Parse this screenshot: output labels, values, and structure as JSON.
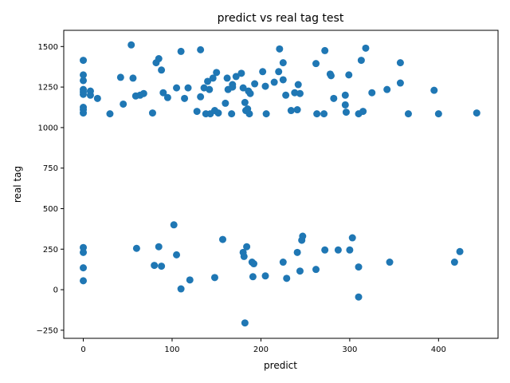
{
  "chart_data": {
    "type": "scatter",
    "title": "predict vs real tag test",
    "xlabel": "predict",
    "ylabel": "real tag",
    "xlim": [
      -22,
      467
    ],
    "ylim": [
      -300,
      1600
    ],
    "xticks": [
      0,
      100,
      200,
      300,
      400
    ],
    "yticks": [
      -250,
      0,
      250,
      500,
      750,
      1000,
      1250,
      1500
    ],
    "grid": false,
    "legend": "none",
    "marker_color": "#1f77b4",
    "series": [
      {
        "points": [
          [
            0,
            1415
          ],
          [
            0,
            1325
          ],
          [
            0,
            1290
          ],
          [
            0,
            1235
          ],
          [
            0,
            1220
          ],
          [
            0,
            1205
          ],
          [
            0,
            1125
          ],
          [
            0,
            1110
          ],
          [
            0,
            1090
          ],
          [
            8,
            1225
          ],
          [
            8,
            1200
          ],
          [
            16,
            1180
          ],
          [
            30,
            1085
          ],
          [
            42,
            1310
          ],
          [
            45,
            1145
          ],
          [
            54,
            1510
          ],
          [
            56,
            1305
          ],
          [
            59,
            1195
          ],
          [
            64,
            1200
          ],
          [
            68,
            1210
          ],
          [
            78,
            1090
          ],
          [
            82,
            1400
          ],
          [
            85,
            1425
          ],
          [
            88,
            1355
          ],
          [
            90,
            1215
          ],
          [
            95,
            1185
          ],
          [
            105,
            1245
          ],
          [
            110,
            1470
          ],
          [
            114,
            1180
          ],
          [
            118,
            1245
          ],
          [
            128,
            1100
          ],
          [
            132,
            1480
          ],
          [
            132,
            1190
          ],
          [
            136,
            1245
          ],
          [
            138,
            1085
          ],
          [
            140,
            1285
          ],
          [
            142,
            1235
          ],
          [
            143,
            1085
          ],
          [
            146,
            1305
          ],
          [
            148,
            1105
          ],
          [
            150,
            1340
          ],
          [
            152,
            1090
          ],
          [
            160,
            1150
          ],
          [
            162,
            1305
          ],
          [
            163,
            1235
          ],
          [
            167,
            1085
          ],
          [
            168,
            1250
          ],
          [
            168,
            1265
          ],
          [
            172,
            1315
          ],
          [
            178,
            1335
          ],
          [
            180,
            1245
          ],
          [
            182,
            1155
          ],
          [
            183,
            1105
          ],
          [
            185,
            1115
          ],
          [
            186,
            1225
          ],
          [
            187,
            1085
          ],
          [
            188,
            1210
          ],
          [
            193,
            1270
          ],
          [
            202,
            1345
          ],
          [
            205,
            1255
          ],
          [
            206,
            1085
          ],
          [
            215,
            1280
          ],
          [
            220,
            1345
          ],
          [
            221,
            1485
          ],
          [
            225,
            1400
          ],
          [
            225,
            1295
          ],
          [
            228,
            1200
          ],
          [
            234,
            1105
          ],
          [
            238,
            1215
          ],
          [
            241,
            1110
          ],
          [
            242,
            1265
          ],
          [
            244,
            1210
          ],
          [
            262,
            1395
          ],
          [
            263,
            1085
          ],
          [
            271,
            1085
          ],
          [
            272,
            1475
          ],
          [
            278,
            1330
          ],
          [
            279,
            1320
          ],
          [
            282,
            1180
          ],
          [
            295,
            1200
          ],
          [
            295,
            1140
          ],
          [
            296,
            1095
          ],
          [
            299,
            1325
          ],
          [
            310,
            1085
          ],
          [
            313,
            1415
          ],
          [
            315,
            1100
          ],
          [
            318,
            1490
          ],
          [
            325,
            1215
          ],
          [
            342,
            1235
          ],
          [
            357,
            1275
          ],
          [
            357,
            1400
          ],
          [
            366,
            1085
          ],
          [
            395,
            1230
          ],
          [
            400,
            1085
          ],
          [
            443,
            1090
          ],
          [
            0,
            260
          ],
          [
            0,
            230
          ],
          [
            0,
            135
          ],
          [
            0,
            55
          ],
          [
            60,
            255
          ],
          [
            80,
            150
          ],
          [
            85,
            265
          ],
          [
            88,
            145
          ],
          [
            102,
            400
          ],
          [
            105,
            215
          ],
          [
            110,
            5
          ],
          [
            120,
            60
          ],
          [
            148,
            75
          ],
          [
            157,
            310
          ],
          [
            180,
            230
          ],
          [
            181,
            205
          ],
          [
            182,
            -205
          ],
          [
            184,
            265
          ],
          [
            190,
            170
          ],
          [
            191,
            80
          ],
          [
            192,
            160
          ],
          [
            205,
            85
          ],
          [
            225,
            170
          ],
          [
            229,
            70
          ],
          [
            241,
            230
          ],
          [
            244,
            115
          ],
          [
            246,
            305
          ],
          [
            247,
            330
          ],
          [
            262,
            125
          ],
          [
            272,
            245
          ],
          [
            287,
            245
          ],
          [
            300,
            245
          ],
          [
            303,
            320
          ],
          [
            310,
            140
          ],
          [
            310,
            -45
          ],
          [
            345,
            170
          ],
          [
            418,
            170
          ],
          [
            424,
            235
          ]
        ]
      }
    ]
  }
}
